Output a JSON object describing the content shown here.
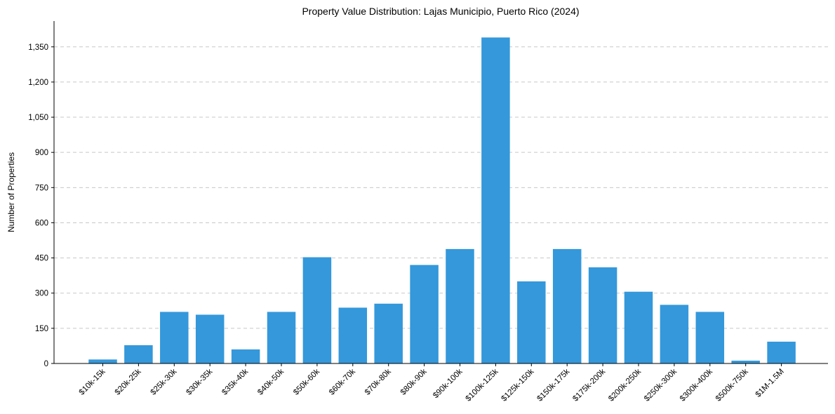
{
  "chart_data": {
    "type": "bar",
    "title": "Property Value Distribution: Lajas Municipio, Puerto Rico (2024)",
    "xlabel": "",
    "ylabel": "Number of Properties",
    "ylim": [
      0,
      1460
    ],
    "yticks": [
      0,
      150,
      300,
      450,
      600,
      750,
      900,
      1050,
      1200,
      1350
    ],
    "ytick_labels": [
      "0",
      "150",
      "300",
      "450",
      "600",
      "750",
      "900",
      "1,050",
      "1,200",
      "1,350"
    ],
    "grid": true,
    "bar_color": "#3498db",
    "categories": [
      "$10k-15k",
      "$20k-25k",
      "$25k-30k",
      "$30k-35k",
      "$35k-40k",
      "$40k-50k",
      "$50k-60k",
      "$60k-70k",
      "$70k-80k",
      "$80k-90k",
      "$90k-100k",
      "$100k-125k",
      "$125k-150k",
      "$150k-175k",
      "$175k-200k",
      "$200k-250k",
      "$250k-300k",
      "$300k-400k",
      "$500k-750k",
      "$1M-1.5M"
    ],
    "values": [
      17,
      78,
      220,
      208,
      60,
      220,
      453,
      238,
      255,
      420,
      488,
      1390,
      350,
      488,
      410,
      306,
      250,
      220,
      12,
      93
    ]
  }
}
